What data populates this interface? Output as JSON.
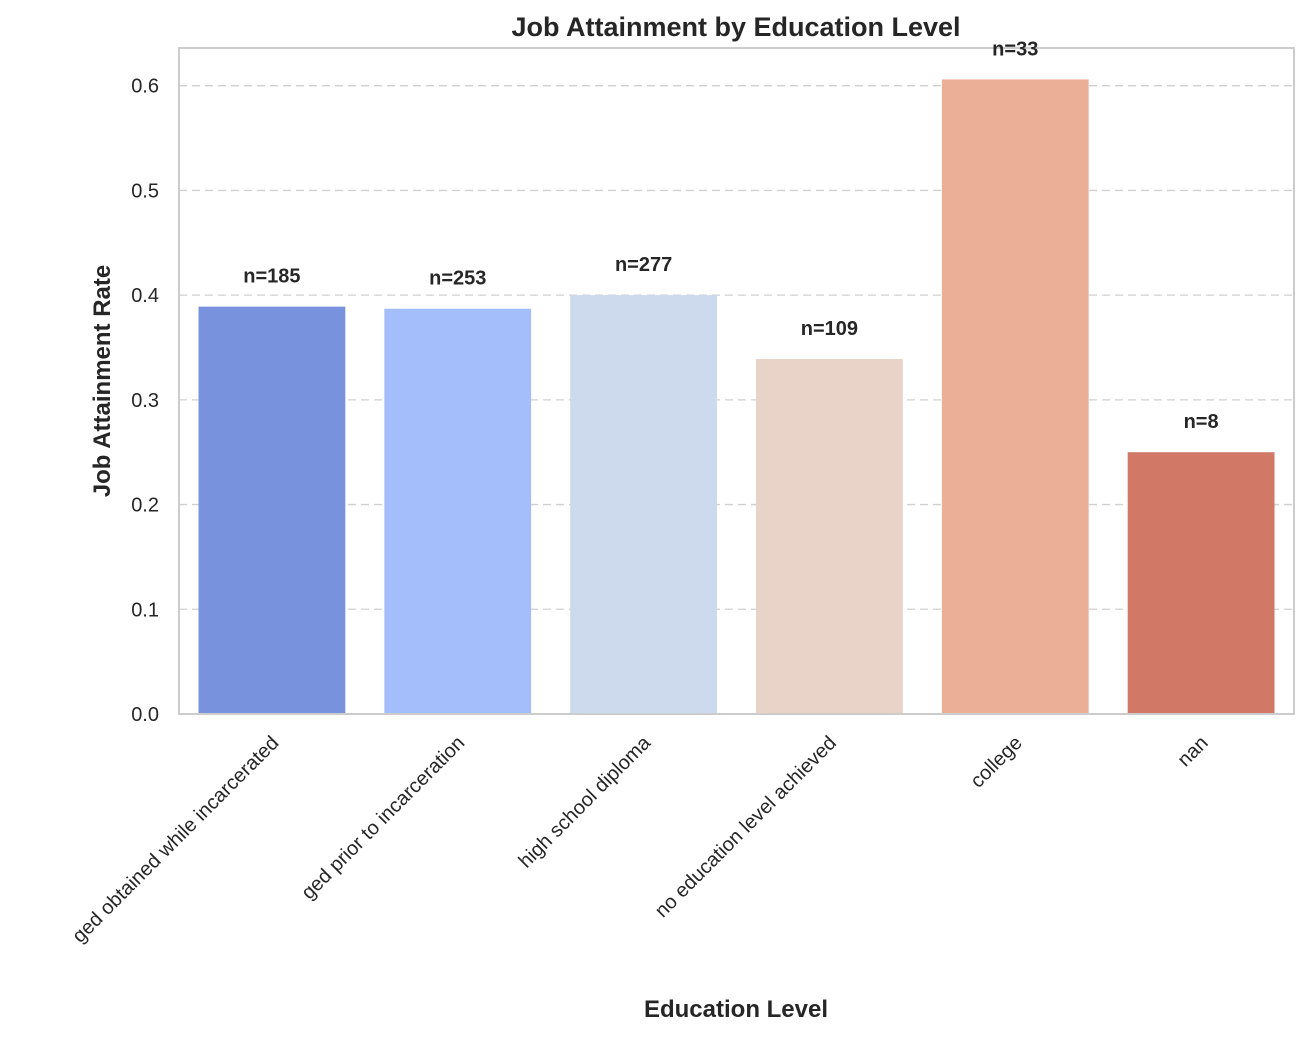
{
  "chart_data": {
    "type": "bar",
    "title": "Job Attainment by Education Level",
    "xlabel": "Education Level",
    "ylabel": "Job Attainment Rate",
    "categories": [
      "ged obtained while incarcerated",
      "ged prior to incarceration",
      "high school diploma",
      "no education level achieved",
      "college",
      "nan"
    ],
    "values": [
      0.389,
      0.387,
      0.4,
      0.339,
      0.606,
      0.25
    ],
    "labels": [
      "n=185",
      "n=253",
      "n=277",
      "n=109",
      "n=33",
      "n=8"
    ],
    "colors": [
      "#7892de",
      "#a3befa",
      "#cdd9ec",
      "#e9d3c8",
      "#ebaf98",
      "#d17866"
    ],
    "ylim": [
      0,
      0.636
    ],
    "yticks": [
      0.0,
      0.1,
      0.2,
      0.3,
      0.4,
      0.5,
      0.6
    ],
    "ytick_labels": [
      "0.0",
      "0.1",
      "0.2",
      "0.3",
      "0.4",
      "0.5",
      "0.6"
    ],
    "grid": "y-dashed",
    "legend": "none"
  }
}
